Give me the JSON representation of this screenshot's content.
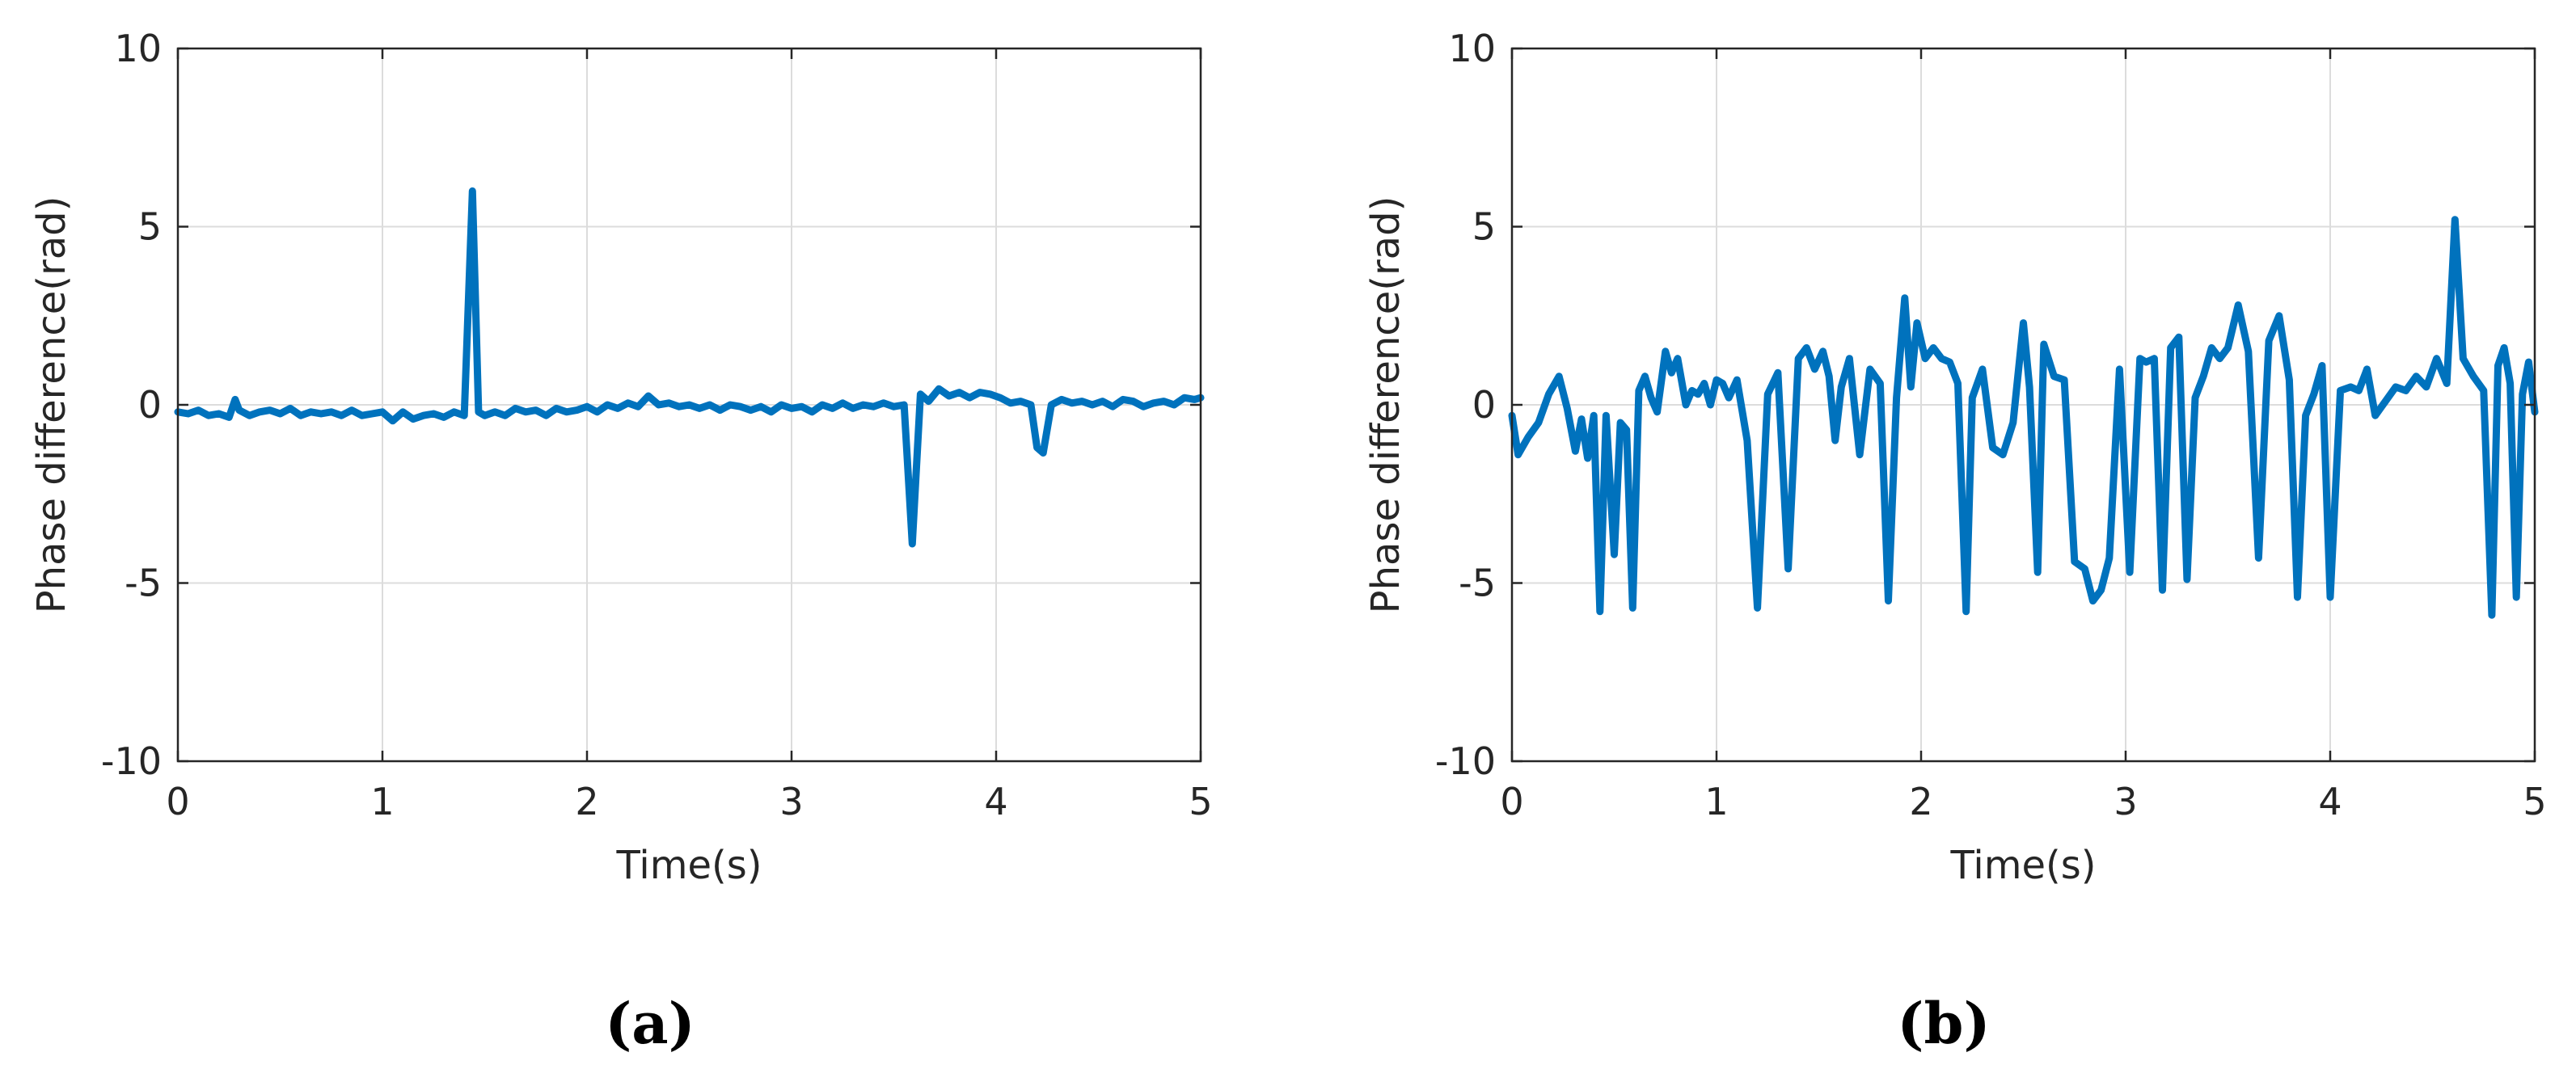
{
  "figure": {
    "captions": [
      "(a)",
      "(b)"
    ]
  },
  "chart_data": [
    {
      "type": "line",
      "panel": "(a)",
      "title": "",
      "xlabel": "Time(s)",
      "ylabel": "Phase difference(rad)",
      "xlim": [
        0,
        5
      ],
      "ylim": [
        -10,
        10
      ],
      "xticks": [
        0,
        1,
        2,
        3,
        4,
        5
      ],
      "xtick_labels": [
        "0",
        "1",
        "2",
        "3",
        "4",
        "5"
      ],
      "yticks": [
        10,
        5,
        0,
        -5,
        -10
      ],
      "ytick_labels": [
        "10",
        "5",
        "0",
        "-5",
        "-10"
      ],
      "grid": true,
      "legend": "none",
      "color": "#0072BD",
      "series": [
        {
          "x": [
            0,
            0.05,
            0.1,
            0.15,
            0.2,
            0.25,
            0.28,
            0.3,
            0.35,
            0.4,
            0.45,
            0.5,
            0.55,
            0.6,
            0.65,
            0.7,
            0.75,
            0.8,
            0.85,
            0.9,
            0.95,
            1.0,
            1.05,
            1.1,
            1.15,
            1.2,
            1.25,
            1.3,
            1.35,
            1.4,
            1.44,
            1.47,
            1.5,
            1.55,
            1.6,
            1.65,
            1.7,
            1.75,
            1.8,
            1.85,
            1.9,
            1.95,
            2.0,
            2.05,
            2.1,
            2.15,
            2.2,
            2.25,
            2.3,
            2.35,
            2.4,
            2.45,
            2.5,
            2.55,
            2.6,
            2.65,
            2.7,
            2.75,
            2.8,
            2.85,
            2.9,
            2.95,
            3.0,
            3.05,
            3.1,
            3.15,
            3.2,
            3.25,
            3.3,
            3.35,
            3.4,
            3.45,
            3.5,
            3.55,
            3.59,
            3.63,
            3.67,
            3.72,
            3.77,
            3.82,
            3.87,
            3.92,
            3.97,
            4.02,
            4.07,
            4.12,
            4.17,
            4.2,
            4.23,
            4.27,
            4.32,
            4.37,
            4.42,
            4.47,
            4.52,
            4.57,
            4.62,
            4.67,
            4.72,
            4.77,
            4.82,
            4.87,
            4.92,
            4.97,
            5.0
          ],
          "y": [
            -0.2,
            -0.25,
            -0.15,
            -0.3,
            -0.25,
            -0.35,
            0.15,
            -0.15,
            -0.3,
            -0.2,
            -0.15,
            -0.25,
            -0.1,
            -0.3,
            -0.2,
            -0.25,
            -0.2,
            -0.3,
            -0.15,
            -0.3,
            -0.25,
            -0.2,
            -0.45,
            -0.2,
            -0.4,
            -0.3,
            -0.25,
            -0.35,
            -0.2,
            -0.3,
            6.0,
            -0.2,
            -0.3,
            -0.2,
            -0.3,
            -0.1,
            -0.2,
            -0.15,
            -0.3,
            -0.1,
            -0.2,
            -0.15,
            -0.05,
            -0.2,
            0.0,
            -0.1,
            0.05,
            -0.05,
            0.25,
            0.0,
            0.05,
            -0.05,
            0.0,
            -0.1,
            0.0,
            -0.15,
            0.0,
            -0.05,
            -0.15,
            -0.05,
            -0.2,
            0.0,
            -0.1,
            -0.05,
            -0.2,
            0.0,
            -0.1,
            0.05,
            -0.1,
            0.0,
            -0.05,
            0.05,
            -0.05,
            0.0,
            -3.9,
            0.3,
            0.1,
            0.45,
            0.25,
            0.35,
            0.2,
            0.35,
            0.3,
            0.2,
            0.05,
            0.1,
            0.0,
            -1.2,
            -1.35,
            0.0,
            0.15,
            0.05,
            0.1,
            0.0,
            0.1,
            -0.05,
            0.15,
            0.1,
            -0.05,
            0.05,
            0.1,
            0.0,
            0.2,
            0.15,
            0.2
          ]
        }
      ]
    },
    {
      "type": "line",
      "panel": "(b)",
      "title": "",
      "xlabel": "Time(s)",
      "ylabel": "Phase difference(rad)",
      "xlim": [
        0,
        5
      ],
      "ylim": [
        -10,
        10
      ],
      "xticks": [
        0,
        1,
        2,
        3,
        4,
        5
      ],
      "xtick_labels": [
        "0",
        "1",
        "2",
        "3",
        "4",
        "5"
      ],
      "yticks": [
        10,
        5,
        0,
        -5,
        -10
      ],
      "ytick_labels": [
        "10",
        "5",
        "0",
        "-5",
        "-10"
      ],
      "grid": true,
      "legend": "none",
      "color": "#0072BD",
      "series": [
        {
          "x": [
            0,
            0.03,
            0.08,
            0.13,
            0.18,
            0.23,
            0.27,
            0.31,
            0.34,
            0.37,
            0.4,
            0.43,
            0.46,
            0.5,
            0.53,
            0.56,
            0.59,
            0.62,
            0.65,
            0.68,
            0.71,
            0.75,
            0.78,
            0.81,
            0.85,
            0.88,
            0.91,
            0.94,
            0.97,
            1.0,
            1.03,
            1.06,
            1.1,
            1.15,
            1.2,
            1.25,
            1.3,
            1.35,
            1.4,
            1.44,
            1.48,
            1.52,
            1.55,
            1.58,
            1.61,
            1.65,
            1.7,
            1.75,
            1.8,
            1.84,
            1.88,
            1.92,
            1.95,
            1.98,
            2.02,
            2.06,
            2.1,
            2.14,
            2.18,
            2.22,
            2.25,
            2.3,
            2.35,
            2.4,
            2.45,
            2.5,
            2.53,
            2.57,
            2.6,
            2.65,
            2.7,
            2.75,
            2.8,
            2.84,
            2.88,
            2.92,
            2.97,
            3.02,
            3.07,
            3.1,
            3.14,
            3.18,
            3.22,
            3.26,
            3.3,
            3.34,
            3.38,
            3.42,
            3.46,
            3.5,
            3.55,
            3.6,
            3.65,
            3.7,
            3.75,
            3.8,
            3.84,
            3.88,
            3.92,
            3.96,
            4.0,
            4.05,
            4.1,
            4.14,
            4.18,
            4.22,
            4.27,
            4.32,
            4.37,
            4.42,
            4.47,
            4.52,
            4.57,
            4.61,
            4.65,
            4.7,
            4.75,
            4.79,
            4.82,
            4.85,
            4.88,
            4.91,
            4.94,
            4.97,
            5.0
          ],
          "y": [
            -0.3,
            -1.4,
            -0.9,
            -0.5,
            0.3,
            0.8,
            -0.1,
            -1.3,
            -0.4,
            -1.5,
            -0.3,
            -5.8,
            -0.3,
            -4.2,
            -0.5,
            -0.7,
            -5.7,
            0.4,
            0.8,
            0.2,
            -0.2,
            1.5,
            0.9,
            1.3,
            0.0,
            0.4,
            0.3,
            0.6,
            0.0,
            0.7,
            0.6,
            0.2,
            0.7,
            -1.0,
            -5.7,
            0.3,
            0.9,
            -4.6,
            1.3,
            1.6,
            1.0,
            1.5,
            0.8,
            -1.0,
            0.5,
            1.3,
            -1.4,
            1.0,
            0.6,
            -5.5,
            0.2,
            3.0,
            0.5,
            2.3,
            1.3,
            1.6,
            1.3,
            1.2,
            0.6,
            -5.8,
            0.2,
            1.0,
            -1.2,
            -1.4,
            -0.5,
            2.3,
            0.5,
            -4.7,
            1.7,
            0.8,
            0.7,
            -4.4,
            -4.6,
            -5.5,
            -5.2,
            -4.3,
            1.0,
            -4.7,
            1.3,
            1.2,
            1.3,
            -5.2,
            1.6,
            1.9,
            -4.9,
            0.2,
            0.8,
            1.6,
            1.3,
            1.6,
            2.8,
            1.5,
            -4.3,
            1.8,
            2.5,
            0.7,
            -5.4,
            -0.3,
            0.3,
            1.1,
            -5.4,
            0.4,
            0.5,
            0.4,
            1.0,
            -0.3,
            0.1,
            0.5,
            0.4,
            0.8,
            0.5,
            1.3,
            0.6,
            5.2,
            1.3,
            0.8,
            0.4,
            -5.9,
            1.1,
            1.6,
            0.6,
            -5.4,
            0.3,
            1.2,
            -0.2
          ]
        }
      ]
    }
  ]
}
